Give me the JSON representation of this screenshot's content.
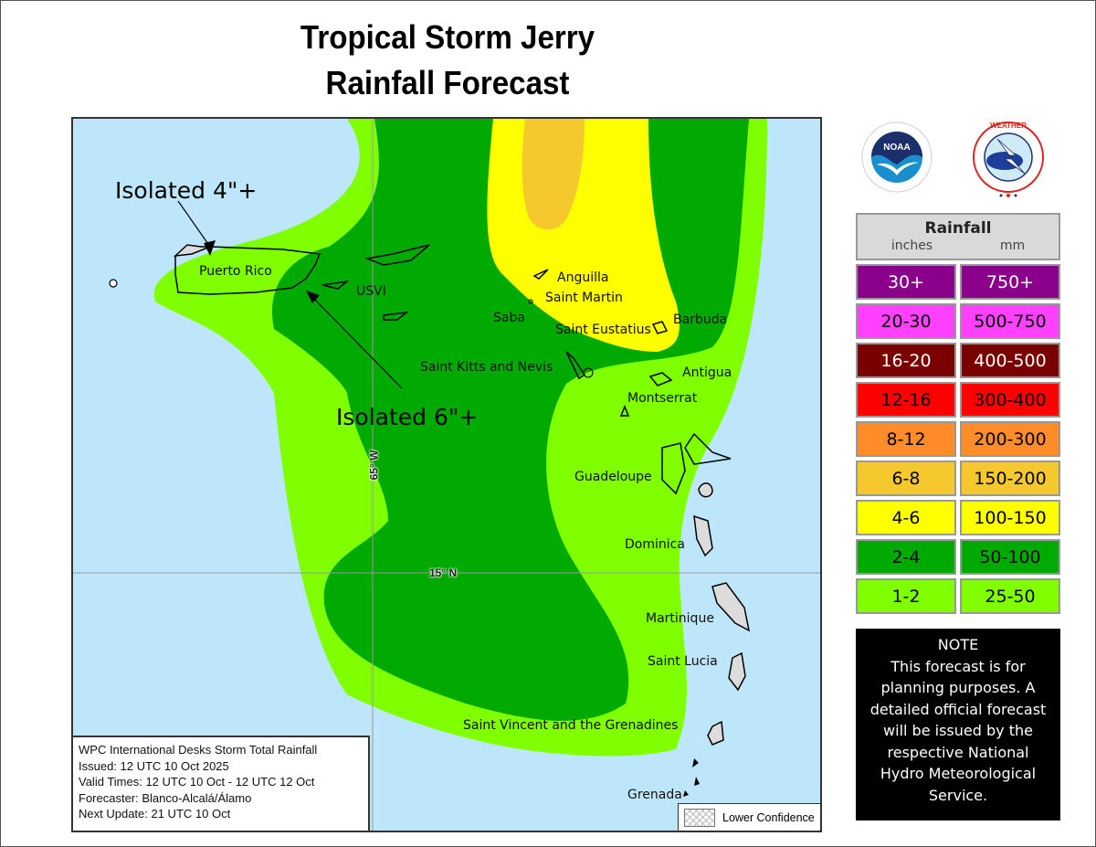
{
  "title": {
    "line1": "Tropical Storm Jerry",
    "line2": "Rainfall Forecast"
  },
  "logos": [
    {
      "name": "NOAA",
      "icon": "noaa-logo-icon"
    },
    {
      "name": "National Weather Service",
      "icon": "nws-logo-icon"
    }
  ],
  "map": {
    "annotations": [
      {
        "text": "Isolated 4\"+",
        "target": "Puerto Rico"
      },
      {
        "text": "Isolated 6\"+",
        "target": "eastern Puerto Rico"
      }
    ],
    "places": [
      "Puerto Rico",
      "USVI",
      "Anguilla",
      "Saint Martin",
      "Saba",
      "Saint Eustatius",
      "Barbuda",
      "Saint Kitts and Nevis",
      "Antigua",
      "Montserrat",
      "Guadeloupe",
      "Dominica",
      "Martinique",
      "Saint Lucia",
      "Saint Vincent and the Grenadines",
      "Grenada"
    ],
    "gridlines": {
      "longitude": "65° W",
      "latitude": "15° N"
    },
    "info": {
      "line1": "WPC International Desks Storm Total Rainfall",
      "line2": "Issued: 12 UTC 10 Oct 2025",
      "line3": "Valid Times: 12 UTC 10 Oct - 12 UTC 12 Oct",
      "line4": "Forecaster: Blanco-Alcalá/Álamo",
      "line5": "Next Update: 21 UTC 10 Oct"
    },
    "confidence_legend": "Lower Confidence",
    "colors": {
      "ocean": "#bee6fb",
      "land": "#dcdcdc"
    }
  },
  "legend": {
    "title": "Rainfall",
    "unit_in": "inches",
    "unit_mm": "mm",
    "rows": [
      {
        "inches": "30+",
        "mm": "750+",
        "color": "#8b008b",
        "text": "#ffffff"
      },
      {
        "inches": "20-30",
        "mm": "500-750",
        "color": "#ff40ff",
        "text": "#000000"
      },
      {
        "inches": "16-20",
        "mm": "400-500",
        "color": "#7a0000",
        "text": "#ffffff"
      },
      {
        "inches": "12-16",
        "mm": "300-400",
        "color": "#ff0000",
        "text": "#000000"
      },
      {
        "inches": "8-12",
        "mm": "200-300",
        "color": "#ff8c28",
        "text": "#000000"
      },
      {
        "inches": "6-8",
        "mm": "150-200",
        "color": "#f5c92e",
        "text": "#000000"
      },
      {
        "inches": "4-6",
        "mm": "100-150",
        "color": "#ffff00",
        "text": "#000000"
      },
      {
        "inches": "2-4",
        "mm": "50-100",
        "color": "#00aa00",
        "text": "#000000"
      },
      {
        "inches": "1-2",
        "mm": "25-50",
        "color": "#7fff00",
        "text": "#000000"
      }
    ]
  },
  "note": {
    "heading": "NOTE",
    "l1": "This forecast is for",
    "l2": "planning purposes. A",
    "l3": "detailed official forecast",
    "l4": "will be issued by the",
    "l5": "respective National",
    "l6": "Hydro Meteorological",
    "l7": "Service."
  }
}
